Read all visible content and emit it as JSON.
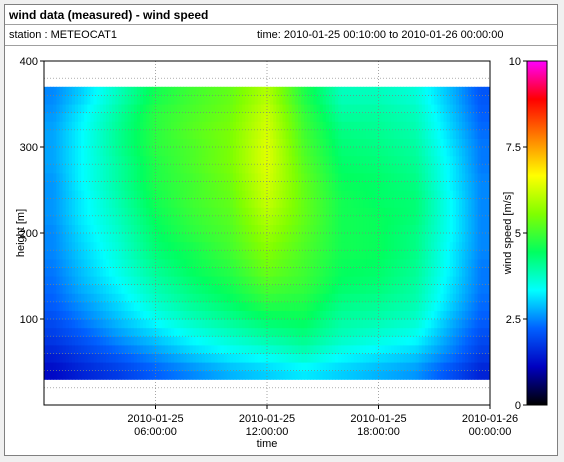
{
  "header": {
    "title": "wind data (measured) - wind speed",
    "station": "station : METEOCAT1",
    "time_range": "time: 2010-01-25 00:10:00 to 2010-01-26 00:00:00"
  },
  "chart_data": {
    "type": "heatmap",
    "xlabel": "time",
    "ylabel": "height [m]",
    "colorbar_label": "wind speed [m/s]",
    "colorscale": "rainbow (black-blue-cyan-green-yellow-red-magenta)",
    "colorscale_colors": [
      "#000000",
      "#0000c0",
      "#0060ff",
      "#00ffff",
      "#00ff60",
      "#80ff00",
      "#ffff00",
      "#ff8000",
      "#ff0000",
      "#ff00ff"
    ],
    "x_start": "2010-01-25 00:10:00",
    "x_end": "2010-01-26 00:00:00",
    "xlim_hours": [
      0,
      24
    ],
    "x_ticks": [
      {
        "hour": 6,
        "line1": "2010-01-25",
        "line2": "06:00:00"
      },
      {
        "hour": 12,
        "line1": "2010-01-25",
        "line2": "12:00:00"
      },
      {
        "hour": 18,
        "line1": "2010-01-25",
        "line2": "18:00:00"
      },
      {
        "hour": 24,
        "line1": "2010-01-26",
        "line2": "00:00:00"
      }
    ],
    "ylim": [
      0,
      400
    ],
    "y_ticks": [
      100,
      200,
      300,
      400
    ],
    "y_tick_labels": [
      "100",
      "200",
      "300",
      "400"
    ],
    "zlim": [
      0,
      10
    ],
    "z_ticks": [
      0,
      2.5,
      5,
      7.5,
      10
    ],
    "z_tick_labels": [
      "0",
      "2.5",
      "5",
      "7.5",
      "10"
    ],
    "heights_m": [
      40,
      60,
      80,
      100,
      120,
      140,
      160,
      180,
      200,
      220,
      240,
      260,
      280,
      300,
      320,
      340,
      360
    ],
    "time_hours": [
      0.5,
      2,
      4,
      6,
      8,
      10,
      12,
      14,
      16,
      18,
      20,
      22,
      23.5
    ],
    "wind_speed_profile_ms": [
      [
        1.2,
        1.5,
        1.8,
        2.2,
        2.5,
        2.8,
        3.0,
        3.2,
        3.0,
        2.8,
        2.6,
        2.0,
        1.5
      ],
      [
        1.5,
        1.8,
        2.2,
        2.6,
        3.0,
        3.3,
        3.5,
        3.8,
        3.4,
        3.2,
        3.0,
        2.4,
        1.8
      ],
      [
        1.8,
        2.1,
        2.6,
        3.0,
        3.4,
        3.7,
        4.0,
        4.2,
        3.8,
        3.6,
        3.4,
        2.6,
        2.0
      ],
      [
        2.0,
        2.4,
        2.9,
        3.4,
        3.8,
        4.1,
        4.4,
        4.5,
        4.0,
        3.9,
        3.7,
        2.8,
        2.2
      ],
      [
        2.2,
        2.6,
        3.1,
        3.7,
        4.1,
        4.4,
        4.8,
        4.7,
        4.2,
        4.1,
        3.9,
        3.0,
        2.3
      ],
      [
        2.3,
        2.8,
        3.3,
        3.9,
        4.3,
        4.6,
        5.1,
        4.9,
        4.4,
        4.3,
        4.0,
        3.1,
        2.4
      ],
      [
        2.4,
        2.9,
        3.5,
        4.1,
        4.5,
        4.8,
        5.4,
        5.0,
        4.5,
        4.4,
        4.1,
        3.2,
        2.4
      ],
      [
        2.5,
        3.0,
        3.6,
        4.3,
        4.6,
        5.0,
        5.6,
        5.1,
        4.6,
        4.5,
        4.2,
        3.2,
        2.5
      ],
      [
        2.5,
        3.1,
        3.7,
        4.4,
        4.8,
        5.1,
        5.8,
        5.2,
        4.6,
        4.5,
        4.2,
        3.3,
        2.5
      ],
      [
        2.6,
        3.2,
        3.8,
        4.5,
        4.9,
        5.2,
        6.0,
        5.3,
        4.6,
        4.5,
        4.3,
        3.3,
        2.5
      ],
      [
        2.6,
        3.2,
        3.9,
        4.6,
        5.0,
        5.3,
        6.2,
        5.3,
        4.6,
        4.4,
        4.3,
        3.3,
        2.5
      ],
      [
        2.6,
        3.3,
        4.0,
        4.7,
        5.0,
        5.4,
        6.3,
        5.3,
        4.5,
        4.4,
        4.2,
        3.2,
        2.5
      ],
      [
        2.7,
        3.3,
        4.0,
        4.7,
        5.1,
        5.5,
        6.4,
        5.2,
        4.4,
        4.3,
        4.1,
        3.2,
        2.4
      ],
      [
        2.7,
        3.3,
        4.1,
        4.8,
        5.1,
        5.5,
        6.4,
        5.1,
        4.3,
        4.2,
        4.0,
        3.1,
        2.4
      ],
      [
        2.7,
        3.3,
        4.1,
        4.8,
        5.2,
        5.5,
        6.3,
        5.0,
        4.2,
        4.1,
        3.9,
        3.0,
        2.3
      ],
      [
        2.6,
        3.2,
        4.0,
        4.8,
        5.1,
        5.4,
        6.2,
        4.9,
        4.0,
        4.0,
        3.8,
        2.9,
        2.2
      ],
      [
        2.5,
        3.0,
        3.8,
        4.6,
        5.0,
        5.3,
        6.0,
        4.7,
        3.8,
        3.8,
        3.6,
        2.8,
        2.1
      ]
    ]
  }
}
